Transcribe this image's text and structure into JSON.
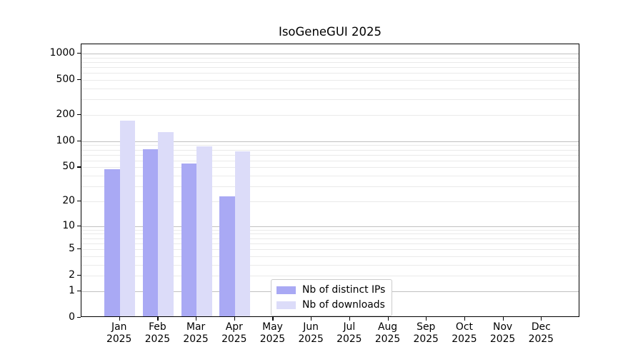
{
  "chart_data": {
    "type": "bar",
    "title": "IsoGeneGUI 2025",
    "categories": [
      "Jan 2025",
      "Feb 2025",
      "Mar 2025",
      "Apr 2025",
      "May 2025",
      "Jun 2025",
      "Jul 2025",
      "Aug 2025",
      "Sep 2025",
      "Oct 2025",
      "Nov 2025",
      "Dec 2025"
    ],
    "x_tick_months": [
      "Jan",
      "Feb",
      "Mar",
      "Apr",
      "May",
      "Jun",
      "Jul",
      "Aug",
      "Sep",
      "Oct",
      "Nov",
      "Dec"
    ],
    "x_tick_year": "2025",
    "series": [
      {
        "name": "Nb of distinct IPs",
        "color": "#a9a9f4",
        "values": [
          46,
          78,
          53,
          22,
          null,
          null,
          null,
          null,
          null,
          null,
          null,
          null
        ]
      },
      {
        "name": "Nb of downloads",
        "color": "#dcdcf9",
        "values": [
          165,
          122,
          84,
          74,
          null,
          null,
          null,
          null,
          null,
          null,
          null,
          null
        ]
      }
    ],
    "y_axis": {
      "scale": "log1p",
      "ticks": [
        0,
        1,
        2,
        5,
        10,
        20,
        50,
        100,
        200,
        500,
        1000
      ],
      "lim": [
        0,
        1280
      ]
    },
    "grid": "horizontal",
    "grid_major_color": "#c0c0c0",
    "grid_minor_color": "#eaeaea",
    "legend": {
      "position": "inside-bottom-center",
      "items": [
        "Nb of distinct IPs",
        "Nb of downloads"
      ]
    }
  }
}
